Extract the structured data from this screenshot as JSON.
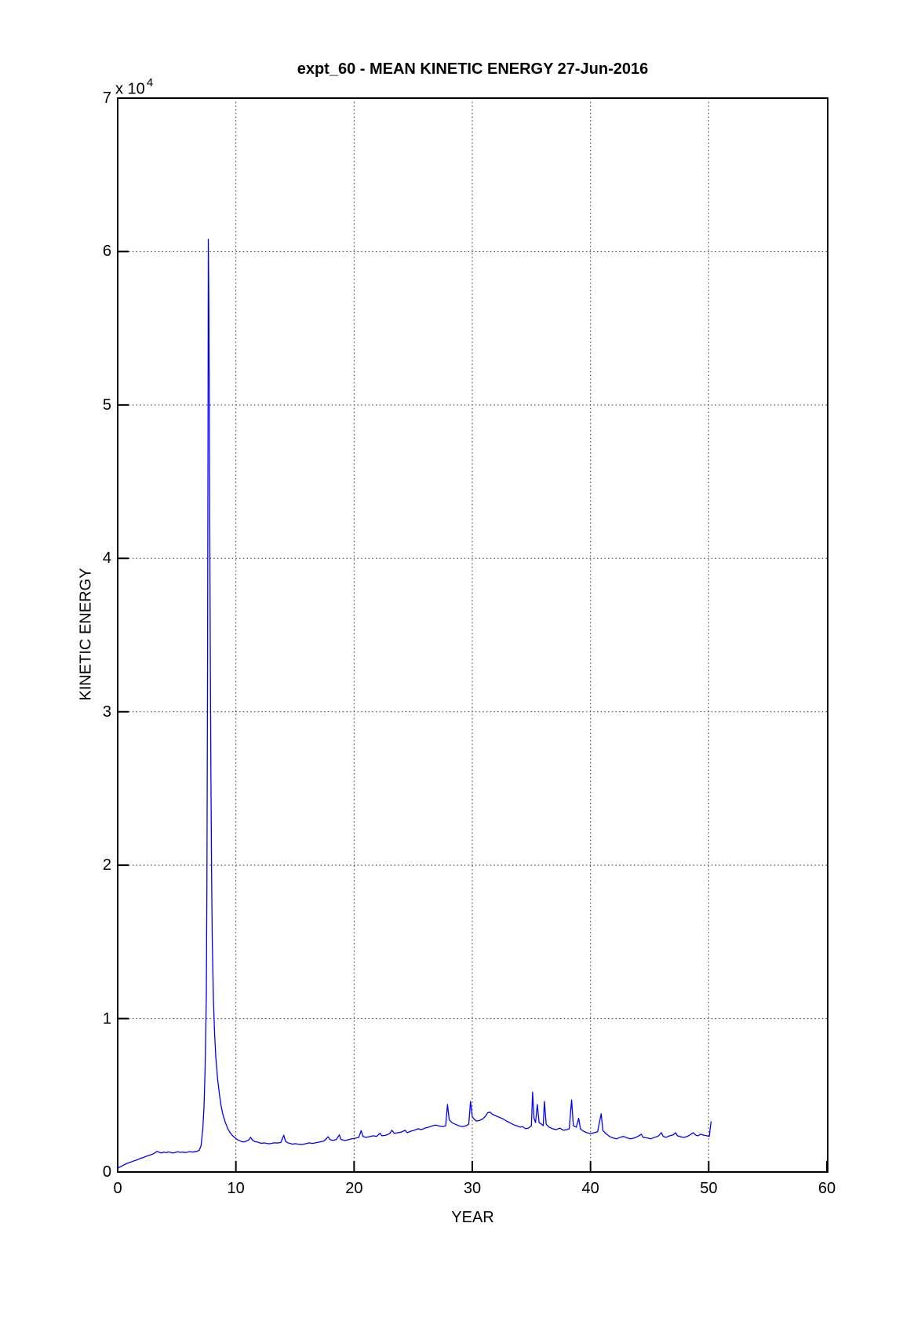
{
  "figure": {
    "background": "#ffffff",
    "axis_color": "#000000",
    "grid_style": "dotted"
  },
  "chart_data": {
    "type": "line",
    "title": "expt_60 - MEAN KINETIC ENERGY 27-Jun-2016",
    "xlabel": "YEAR",
    "ylabel": "KINETIC ENERGY",
    "y_offset_label": {
      "base": "x 10",
      "exponent": "4"
    },
    "xlim": [
      0,
      60
    ],
    "ylim": [
      0,
      7
    ],
    "xticks": [
      0,
      10,
      20,
      30,
      40,
      50,
      60
    ],
    "yticks": [
      0,
      1,
      2,
      3,
      4,
      5,
      6,
      7
    ],
    "grid": "on",
    "legend": "none",
    "line_color": "#0000ff",
    "series_name": "mean-kinetic-energy",
    "y_units_note": "values in units of 10^4",
    "x": [
      0.0,
      0.25,
      0.5,
      0.75,
      1.0,
      1.3,
      1.6,
      1.9,
      2.2,
      2.5,
      2.8,
      3.0,
      3.2,
      3.35,
      3.5,
      3.7,
      3.9,
      4.1,
      4.3,
      4.5,
      4.7,
      4.9,
      5.1,
      5.3,
      5.5,
      5.7,
      5.9,
      6.1,
      6.3,
      6.5,
      6.7,
      6.9,
      7.05,
      7.2,
      7.3,
      7.4,
      7.5,
      7.55,
      7.6,
      7.64,
      7.67,
      7.71,
      7.75,
      7.79,
      7.84,
      7.89,
      7.95,
      8.0,
      8.1,
      8.2,
      8.3,
      8.45,
      8.6,
      8.75,
      8.9,
      9.1,
      9.3,
      9.5,
      9.7,
      9.9,
      10.1,
      10.3,
      10.5,
      10.7,
      10.9,
      11.1,
      11.25,
      11.4,
      11.6,
      11.8,
      12.0,
      12.2,
      12.4,
      12.6,
      12.8,
      13.0,
      13.2,
      13.5,
      13.8,
      14.05,
      14.2,
      14.4,
      14.6,
      14.8,
      15.0,
      15.3,
      15.6,
      15.9,
      16.2,
      16.5,
      16.8,
      17.1,
      17.4,
      17.6,
      17.8,
      17.95,
      18.2,
      18.5,
      18.75,
      18.9,
      19.2,
      19.5,
      19.8,
      20.1,
      20.4,
      20.6,
      20.75,
      21.0,
      21.3,
      21.6,
      21.9,
      22.2,
      22.35,
      22.7,
      23.0,
      23.2,
      23.4,
      23.7,
      24.0,
      24.3,
      24.5,
      24.8,
      25.1,
      25.4,
      25.7,
      26.0,
      26.3,
      26.6,
      26.9,
      27.2,
      27.5,
      27.75,
      27.9,
      28.05,
      28.3,
      28.6,
      28.9,
      29.2,
      29.5,
      29.7,
      29.85,
      30.0,
      30.15,
      30.35,
      30.6,
      30.85,
      31.1,
      31.3,
      31.5,
      31.7,
      32.0,
      32.3,
      32.6,
      32.9,
      33.2,
      33.5,
      33.8,
      34.05,
      34.25,
      34.5,
      34.75,
      35.0,
      35.1,
      35.22,
      35.35,
      35.5,
      35.65,
      35.85,
      36.0,
      36.1,
      36.25,
      36.5,
      36.8,
      37.1,
      37.4,
      37.7,
      38.0,
      38.2,
      38.4,
      38.55,
      38.8,
      39.0,
      39.15,
      39.4,
      39.7,
      40.0,
      40.3,
      40.6,
      40.9,
      41.05,
      41.3,
      41.6,
      41.9,
      42.2,
      42.5,
      42.8,
      43.1,
      43.4,
      43.7,
      44.0,
      44.3,
      44.45,
      44.8,
      45.1,
      45.4,
      45.7,
      46.0,
      46.15,
      46.4,
      46.7,
      47.0,
      47.2,
      47.35,
      47.6,
      47.9,
      48.2,
      48.5,
      48.7,
      48.9,
      49.1,
      49.3,
      49.6,
      49.85,
      50.05,
      50.2
    ],
    "y": [
      0.025,
      0.035,
      0.045,
      0.055,
      0.062,
      0.07,
      0.078,
      0.088,
      0.095,
      0.105,
      0.112,
      0.118,
      0.128,
      0.135,
      0.128,
      0.124,
      0.13,
      0.126,
      0.131,
      0.127,
      0.124,
      0.128,
      0.132,
      0.128,
      0.13,
      0.127,
      0.129,
      0.133,
      0.13,
      0.132,
      0.134,
      0.142,
      0.17,
      0.28,
      0.42,
      0.68,
      1.15,
      1.9,
      3.2,
      4.7,
      6.08,
      5.7,
      5.05,
      4.2,
      3.3,
      2.55,
      1.9,
      1.52,
      1.12,
      0.9,
      0.75,
      0.61,
      0.51,
      0.43,
      0.375,
      0.325,
      0.285,
      0.258,
      0.238,
      0.225,
      0.212,
      0.205,
      0.198,
      0.196,
      0.202,
      0.21,
      0.226,
      0.208,
      0.198,
      0.196,
      0.19,
      0.187,
      0.19,
      0.186,
      0.184,
      0.186,
      0.19,
      0.189,
      0.192,
      0.24,
      0.2,
      0.19,
      0.186,
      0.181,
      0.185,
      0.181,
      0.179,
      0.184,
      0.19,
      0.186,
      0.191,
      0.196,
      0.2,
      0.212,
      0.23,
      0.212,
      0.206,
      0.212,
      0.242,
      0.212,
      0.206,
      0.21,
      0.216,
      0.22,
      0.226,
      0.27,
      0.232,
      0.226,
      0.23,
      0.236,
      0.232,
      0.252,
      0.236,
      0.24,
      0.25,
      0.272,
      0.252,
      0.256,
      0.26,
      0.272,
      0.256,
      0.266,
      0.272,
      0.282,
      0.276,
      0.286,
      0.292,
      0.3,
      0.306,
      0.3,
      0.296,
      0.302,
      0.44,
      0.34,
      0.32,
      0.31,
      0.3,
      0.296,
      0.302,
      0.312,
      0.46,
      0.36,
      0.345,
      0.332,
      0.336,
      0.344,
      0.362,
      0.386,
      0.39,
      0.376,
      0.366,
      0.356,
      0.346,
      0.332,
      0.32,
      0.308,
      0.3,
      0.292,
      0.296,
      0.282,
      0.286,
      0.302,
      0.52,
      0.35,
      0.322,
      0.44,
      0.322,
      0.312,
      0.302,
      0.46,
      0.312,
      0.292,
      0.282,
      0.276,
      0.286,
      0.272,
      0.276,
      0.282,
      0.47,
      0.302,
      0.292,
      0.35,
      0.28,
      0.266,
      0.256,
      0.25,
      0.256,
      0.262,
      0.38,
      0.27,
      0.25,
      0.232,
      0.222,
      0.216,
      0.226,
      0.232,
      0.222,
      0.216,
      0.222,
      0.232,
      0.246,
      0.226,
      0.222,
      0.216,
      0.226,
      0.232,
      0.256,
      0.232,
      0.226,
      0.236,
      0.242,
      0.256,
      0.236,
      0.23,
      0.226,
      0.232,
      0.246,
      0.256,
      0.24,
      0.236,
      0.246,
      0.24,
      0.236,
      0.232,
      0.33
    ]
  }
}
